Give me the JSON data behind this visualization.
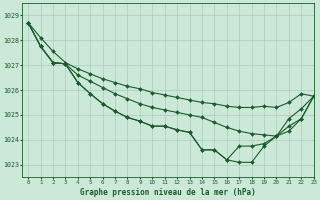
{
  "title": "Graphe pression niveau de la mer (hPa)",
  "background_color": "#cbe8d8",
  "line_color": "#1a5c2a",
  "grid_color": "#a8ccba",
  "xlim": [
    -0.5,
    23
  ],
  "ylim": [
    1022.5,
    1029.5
  ],
  "yticks": [
    1023,
    1024,
    1025,
    1026,
    1027,
    1028,
    1029
  ],
  "xticks": [
    0,
    1,
    2,
    3,
    4,
    5,
    6,
    7,
    8,
    9,
    10,
    11,
    12,
    13,
    14,
    15,
    16,
    17,
    18,
    19,
    20,
    21,
    22,
    23
  ],
  "series": [
    [
      1028.7,
      1028.1,
      1027.55,
      1027.1,
      1026.85,
      1026.65,
      1026.45,
      1026.3,
      1026.15,
      1026.05,
      1025.9,
      1025.8,
      1025.7,
      1025.6,
      1025.5,
      1025.45,
      1025.35,
      1025.3,
      1025.3,
      1025.35,
      1025.3,
      1025.5,
      1025.85,
      1025.75
    ],
    [
      1028.7,
      1027.75,
      1027.1,
      1027.05,
      1026.6,
      1026.35,
      1026.1,
      1025.85,
      1025.65,
      1025.45,
      1025.3,
      1025.2,
      1025.1,
      1025.0,
      1024.9,
      1024.7,
      1024.5,
      1024.35,
      1024.25,
      1024.2,
      1024.15,
      1024.35,
      1024.85,
      1025.75
    ],
    [
      1028.7,
      1027.75,
      1027.1,
      1027.05,
      1026.3,
      1025.85,
      1025.45,
      1025.15,
      1024.9,
      1024.75,
      1024.55,
      1024.55,
      1024.4,
      1024.3,
      1023.6,
      1023.6,
      1023.2,
      1023.1,
      1023.1,
      1023.75,
      1024.15,
      1024.85,
      1025.25,
      1025.75
    ],
    [
      1028.7,
      1027.75,
      1027.1,
      1027.05,
      1026.3,
      1025.85,
      1025.45,
      1025.15,
      1024.9,
      1024.75,
      1024.55,
      1024.55,
      1024.4,
      1024.3,
      1023.6,
      1023.6,
      1023.2,
      1023.75,
      1023.75,
      1023.85,
      1024.15,
      1024.55,
      1024.85,
      1025.75
    ]
  ]
}
